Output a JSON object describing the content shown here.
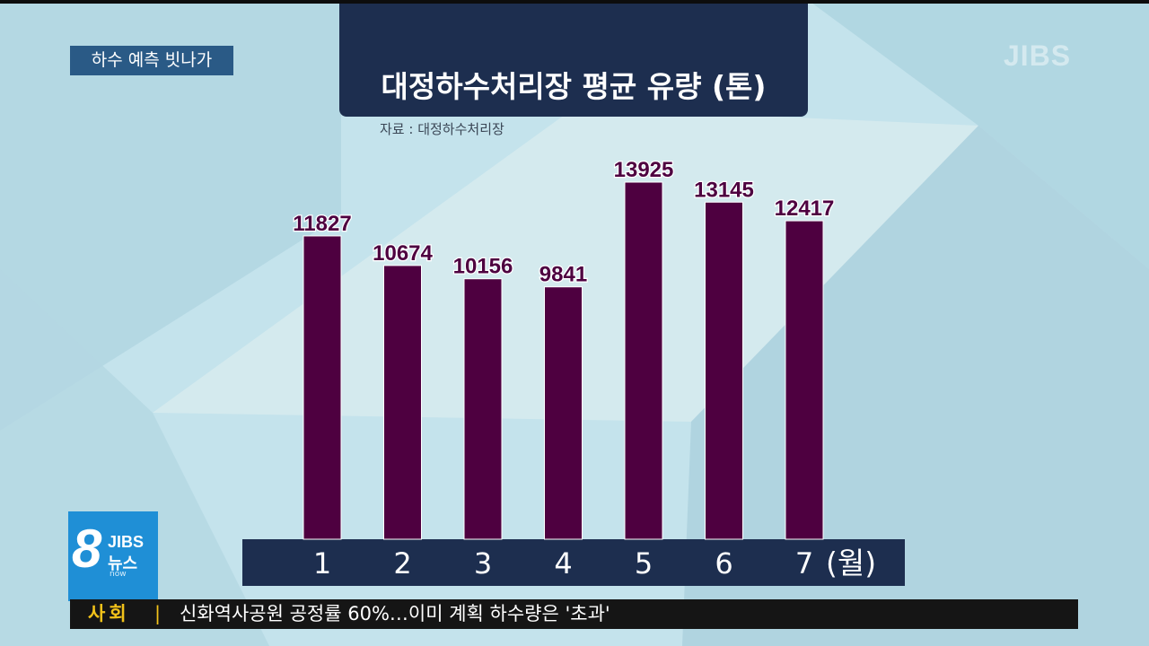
{
  "segment_tag": "하수 예측 빗나가",
  "watermark": "JIBS",
  "title": "대정하수처리장 평균 유량 (톤)",
  "source": "자료 : 대정하수처리장",
  "logo": {
    "number": "8",
    "brand": "JIBS",
    "name": "뉴스",
    "sub": "now"
  },
  "ticker": {
    "category": "사회",
    "separator": "|",
    "headline": "신화역사공원 공정률 60%…이미 계획 하수량은 '초과'"
  },
  "chart_data": {
    "type": "bar",
    "title": "대정하수처리장 평균 유량 (톤)",
    "categories": [
      "1",
      "2",
      "3",
      "4",
      "5",
      "6",
      "7"
    ],
    "values": [
      11827,
      10674,
      10156,
      9841,
      13925,
      13145,
      12417
    ],
    "xlabel_unit": "(월)",
    "bar_color": "#4e0040",
    "label_color": "#4e0040",
    "axis_band_color": "#1d2e4f"
  }
}
